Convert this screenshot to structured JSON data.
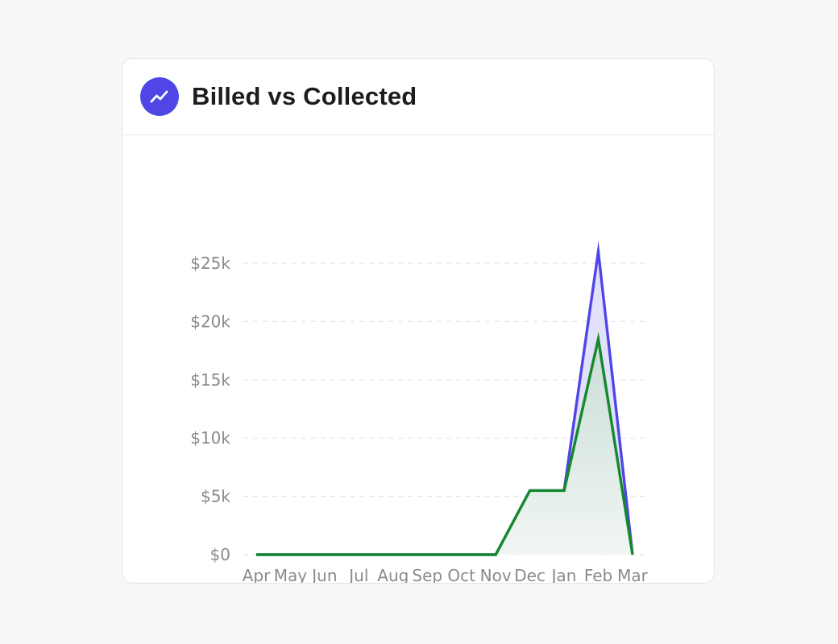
{
  "card": {
    "title": "Billed vs Collected",
    "icon": "trending-up-icon"
  },
  "colors": {
    "accent": "#4f46e5",
    "billed_line": "#4f46e5",
    "billed_fill": "#e2e0fb",
    "collected_line": "#14892c",
    "collected_fill_top": "#c9dcd6",
    "collected_fill_bottom": "#f1f6f3",
    "grid": "#e6e6e6",
    "tick_text": "#8a8a8f"
  },
  "chart_data": {
    "type": "area",
    "categories": [
      "Apr",
      "May",
      "Jun",
      "Jul",
      "Aug",
      "Sep",
      "Oct",
      "Nov",
      "Dec",
      "Jan",
      "Feb",
      "Mar"
    ],
    "series": [
      {
        "key": "billed",
        "values": [
          0,
          0,
          0,
          0,
          0,
          0,
          0,
          0,
          5500,
          5500,
          26000,
          0
        ]
      },
      {
        "key": "collected",
        "values": [
          0,
          0,
          0,
          0,
          0,
          0,
          0,
          0,
          5500,
          5500,
          18500,
          0
        ]
      }
    ],
    "y_ticks": [
      0,
      5000,
      10000,
      15000,
      20000,
      25000
    ],
    "y_tick_labels": [
      "$0",
      "$5k",
      "$10k",
      "$15k",
      "$20k",
      "$25k"
    ],
    "ylim": [
      0,
      26000
    ],
    "grid": true,
    "legend": "none"
  }
}
